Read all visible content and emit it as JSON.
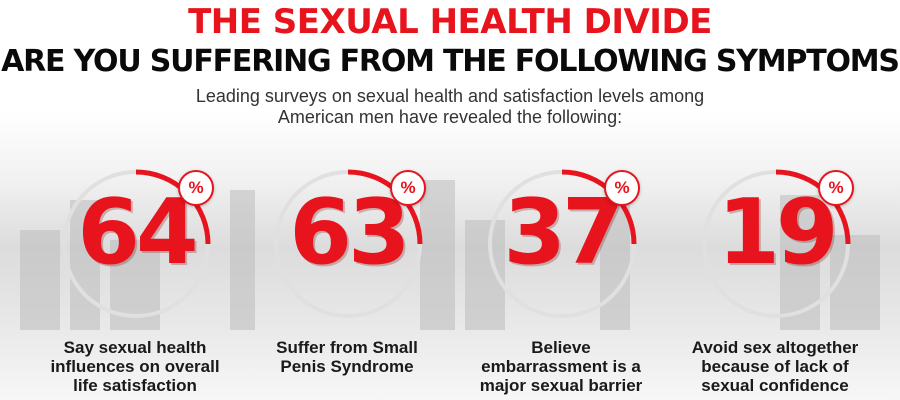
{
  "header": {
    "title": "THE SEXUAL HEALTH DIVIDE",
    "subtitle": "ARE YOU SUFFERING FROM THE FOLLOWING SYMPTOMS",
    "intro_line1": "Leading surveys on sexual health and satisfaction levels among",
    "intro_line2": "American men have revealed the following:"
  },
  "stats": [
    {
      "value": "64",
      "percent_sign": "%",
      "label": "Say sexual health\ninfluences on overall\nlife satisfaction"
    },
    {
      "value": "63",
      "percent_sign": "%",
      "label": "Suffer from Small\nPenis Syndrome"
    },
    {
      "value": "37",
      "percent_sign": "%",
      "label": "Believe\nembarrassment is a\nmajor sexual barrier"
    },
    {
      "value": "19",
      "percent_sign": "%",
      "label": "Avoid sex altogether\nbecause of lack of\nsexual confidence"
    }
  ],
  "colors": {
    "accent": "#e8141d",
    "text": "#0a0a0a"
  }
}
